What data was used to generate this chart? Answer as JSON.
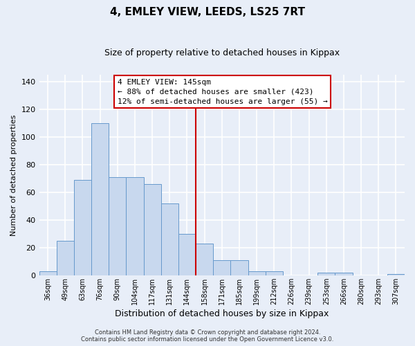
{
  "title": "4, EMLEY VIEW, LEEDS, LS25 7RT",
  "subtitle": "Size of property relative to detached houses in Kippax",
  "xlabel": "Distribution of detached houses by size in Kippax",
  "ylabel": "Number of detached properties",
  "bin_labels": [
    "36sqm",
    "49sqm",
    "63sqm",
    "76sqm",
    "90sqm",
    "104sqm",
    "117sqm",
    "131sqm",
    "144sqm",
    "158sqm",
    "171sqm",
    "185sqm",
    "199sqm",
    "212sqm",
    "226sqm",
    "239sqm",
    "253sqm",
    "266sqm",
    "280sqm",
    "293sqm",
    "307sqm"
  ],
  "bar_values": [
    3,
    25,
    69,
    110,
    71,
    71,
    66,
    52,
    30,
    23,
    11,
    11,
    3,
    3,
    0,
    0,
    2,
    2,
    0,
    0,
    1
  ],
  "bar_color": "#c8d8ee",
  "bar_edge_color": "#6699cc",
  "highlight_label": "4 EMLEY VIEW: 145sqm",
  "annotation_line1": "← 88% of detached houses are smaller (423)",
  "annotation_line2": "12% of semi-detached houses are larger (55) →",
  "annotation_box_color": "#ffffff",
  "annotation_box_edge_color": "#cc0000",
  "vline_color": "#cc0000",
  "vline_x_index": 9,
  "ylim": [
    0,
    145
  ],
  "yticks": [
    0,
    20,
    40,
    60,
    80,
    100,
    120,
    140
  ],
  "footer_line1": "Contains HM Land Registry data © Crown copyright and database right 2024.",
  "footer_line2": "Contains public sector information licensed under the Open Government Licence v3.0.",
  "background_color": "#e8eef8",
  "grid_color": "#ffffff",
  "title_fontsize": 11,
  "subtitle_fontsize": 9,
  "xlabel_fontsize": 9,
  "ylabel_fontsize": 8,
  "tick_fontsize": 7,
  "footer_fontsize": 6,
  "annot_fontsize": 8
}
